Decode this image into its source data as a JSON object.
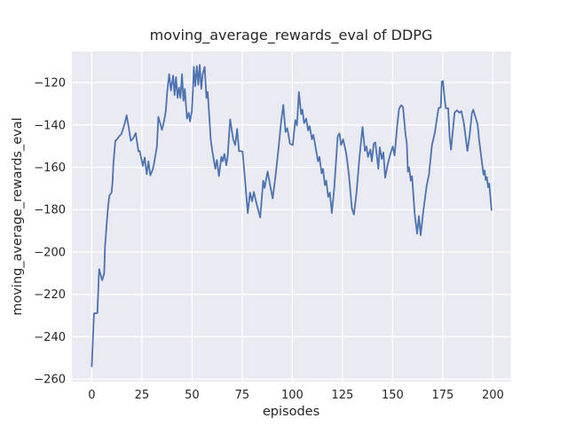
{
  "chart_data": {
    "type": "line",
    "title": "moving_average_rewards_eval of DDPG",
    "xlabel": "episodes",
    "ylabel": "moving_average_rewards_eval",
    "legend": null,
    "grid": true,
    "plot_bg_color": "#EAEAF2",
    "grid_color": "#FFFFFF",
    "line_color": "#4C72B0",
    "text_color": "#262626",
    "xlim": [
      -9.9,
      208.9
    ],
    "ylim": [
      -261.2,
      -105.3
    ],
    "x_ticks": [
      0,
      25,
      50,
      75,
      100,
      125,
      150,
      175,
      200
    ],
    "x_tick_labels": [
      "0",
      "25",
      "50",
      "75",
      "100",
      "125",
      "150",
      "175",
      "200"
    ],
    "y_ticks": [
      -120,
      -140,
      -160,
      -180,
      -200,
      -220,
      -240,
      -260
    ],
    "y_tick_labels": [
      "−120",
      "−140",
      "−160",
      "−180",
      "−200",
      "−220",
      "−240",
      "−260"
    ],
    "series": [
      {
        "name": "moving_average_rewards_eval",
        "points": [
          [
            0,
            -254
          ],
          [
            1.1,
            -229
          ],
          [
            2.8,
            -228.8
          ],
          [
            3.7,
            -208.1
          ],
          [
            5.2,
            -213.4
          ],
          [
            6.2,
            -210.2
          ],
          [
            6.6,
            -197.7
          ],
          [
            7.4,
            -187.2
          ],
          [
            8.1,
            -178.8
          ],
          [
            8.8,
            -173.3
          ],
          [
            9.9,
            -171.9
          ],
          [
            10.3,
            -167.7
          ],
          [
            10.8,
            -158
          ],
          [
            11.8,
            -147.4
          ],
          [
            12.6,
            -146.8
          ],
          [
            13.6,
            -145.5
          ],
          [
            14.8,
            -144.2
          ],
          [
            15.9,
            -141
          ],
          [
            16.5,
            -139
          ],
          [
            17.4,
            -135.5
          ],
          [
            18.4,
            -141
          ],
          [
            19.5,
            -147.5
          ],
          [
            20.7,
            -146.2
          ],
          [
            21.9,
            -143.8
          ],
          [
            23.3,
            -152.5
          ],
          [
            23.9,
            -152.3
          ],
          [
            25.5,
            -159.3
          ],
          [
            26.4,
            -155.4
          ],
          [
            27.4,
            -163.2
          ],
          [
            28.3,
            -157.2
          ],
          [
            29.2,
            -163.8
          ],
          [
            30.3,
            -161.2
          ],
          [
            31,
            -158.6
          ],
          [
            32.5,
            -150.2
          ],
          [
            33.2,
            -136.2
          ],
          [
            34.2,
            -139.5
          ],
          [
            35,
            -142.3
          ],
          [
            36,
            -138.5
          ],
          [
            36.9,
            -133.5
          ],
          [
            37.6,
            -124.4
          ],
          [
            38.6,
            -116
          ],
          [
            39.5,
            -123.8
          ],
          [
            40.6,
            -116.7
          ],
          [
            41.3,
            -125.9
          ],
          [
            42,
            -117.4
          ],
          [
            42.8,
            -127.2
          ],
          [
            43.5,
            -122.3
          ],
          [
            44.2,
            -127.2
          ],
          [
            45,
            -116
          ],
          [
            45.7,
            -128.6
          ],
          [
            46.4,
            -123
          ],
          [
            47.5,
            -137
          ],
          [
            48.4,
            -134.2
          ],
          [
            49,
            -138.4
          ],
          [
            49.9,
            -133.5
          ],
          [
            50.4,
            -124.4
          ],
          [
            50.9,
            -112.6
          ],
          [
            51.6,
            -121.7
          ],
          [
            52.4,
            -112.2
          ],
          [
            53.1,
            -121
          ],
          [
            53.8,
            -111.6
          ],
          [
            54.6,
            -123
          ],
          [
            55.3,
            -116
          ],
          [
            56.3,
            -112.6
          ],
          [
            57.2,
            -127.2
          ],
          [
            57.8,
            -124.4
          ],
          [
            58.7,
            -137
          ],
          [
            59.3,
            -146.8
          ],
          [
            60.1,
            -152.3
          ],
          [
            61.6,
            -160.7
          ],
          [
            62.4,
            -156.5
          ],
          [
            63.4,
            -164.2
          ],
          [
            64.6,
            -155.1
          ],
          [
            65.3,
            -157.2
          ],
          [
            66.1,
            -153.7
          ],
          [
            67.1,
            -159
          ],
          [
            67.8,
            -154.4
          ],
          [
            69,
            -137.3
          ],
          [
            70.5,
            -146.8
          ],
          [
            71.5,
            -149.5
          ],
          [
            72.5,
            -141.9
          ],
          [
            73.4,
            -152.3
          ],
          [
            75.2,
            -152.5
          ],
          [
            76.5,
            -167
          ],
          [
            77.8,
            -181.6
          ],
          [
            78.9,
            -171.9
          ],
          [
            79.9,
            -176.1
          ],
          [
            80.8,
            -171.6
          ],
          [
            82,
            -176.5
          ],
          [
            82.6,
            -178.8
          ],
          [
            84,
            -183.7
          ],
          [
            85.5,
            -166.3
          ],
          [
            86.2,
            -169.8
          ],
          [
            87,
            -165.2
          ],
          [
            87.7,
            -162
          ],
          [
            88.9,
            -168.4
          ],
          [
            90.2,
            -174.7
          ],
          [
            91.5,
            -165
          ],
          [
            93,
            -152
          ],
          [
            94.5,
            -138
          ],
          [
            95.5,
            -130.5
          ],
          [
            96.6,
            -143.3
          ],
          [
            97.5,
            -141.5
          ],
          [
            98.8,
            -148.9
          ],
          [
            100.2,
            -149.5
          ],
          [
            101.5,
            -137.7
          ],
          [
            102.3,
            -140.2
          ],
          [
            103.3,
            -124.4
          ],
          [
            104.4,
            -134.9
          ],
          [
            105,
            -132.8
          ],
          [
            105.9,
            -139.1
          ],
          [
            106.9,
            -137
          ],
          [
            107.9,
            -142.6
          ],
          [
            108.6,
            -140.5
          ],
          [
            109.8,
            -146.8
          ],
          [
            110.5,
            -144.7
          ],
          [
            111.7,
            -151
          ],
          [
            112.8,
            -157.2
          ],
          [
            113.5,
            -155.1
          ],
          [
            114.6,
            -162.8
          ],
          [
            115.3,
            -160.7
          ],
          [
            116.2,
            -168.4
          ],
          [
            116.9,
            -166.3
          ],
          [
            117.9,
            -174
          ],
          [
            118.7,
            -171.9
          ],
          [
            119.7,
            -181.6
          ],
          [
            120.9,
            -169.8
          ],
          [
            122.6,
            -145.4
          ],
          [
            123.5,
            -144
          ],
          [
            124.3,
            -149.5
          ],
          [
            125.3,
            -146.8
          ],
          [
            126.8,
            -153
          ],
          [
            127.5,
            -157.9
          ],
          [
            128.3,
            -164.2
          ],
          [
            129.7,
            -179.5
          ],
          [
            130.7,
            -182.3
          ],
          [
            132,
            -172
          ],
          [
            133.5,
            -155
          ],
          [
            135,
            -141
          ],
          [
            136.2,
            -152.3
          ],
          [
            137,
            -150.2
          ],
          [
            137.7,
            -155.1
          ],
          [
            138.9,
            -151.6
          ],
          [
            139.6,
            -157.2
          ],
          [
            140.6,
            -148.9
          ],
          [
            141.4,
            -148.2
          ],
          [
            142.9,
            -160.7
          ],
          [
            143.6,
            -150.5
          ],
          [
            144.6,
            -156.1
          ],
          [
            145.4,
            -153
          ],
          [
            146.3,
            -164.9
          ],
          [
            147.5,
            -159
          ],
          [
            148.9,
            -153.5
          ],
          [
            150.1,
            -150.2
          ],
          [
            151,
            -154.4
          ],
          [
            152.2,
            -141
          ],
          [
            153.2,
            -132.5
          ],
          [
            154.2,
            -130.7
          ],
          [
            155.2,
            -131.5
          ],
          [
            156.4,
            -144
          ],
          [
            157.1,
            -148.9
          ],
          [
            157.6,
            -162.1
          ],
          [
            158.2,
            -160
          ],
          [
            159.1,
            -166.3
          ],
          [
            159.7,
            -164.2
          ],
          [
            161,
            -181.6
          ],
          [
            162.2,
            -191.4
          ],
          [
            163.1,
            -183
          ],
          [
            164,
            -192.1
          ],
          [
            165.2,
            -181.6
          ],
          [
            166.9,
            -169.1
          ],
          [
            168.1,
            -163.5
          ],
          [
            169.6,
            -149.5
          ],
          [
            171,
            -144
          ],
          [
            172.9,
            -132.1
          ],
          [
            174,
            -131.7
          ],
          [
            174.5,
            -119.6
          ],
          [
            175.1,
            -119.2
          ],
          [
            175.9,
            -127.2
          ],
          [
            176.5,
            -132.1
          ],
          [
            177.7,
            -132.1
          ],
          [
            178.4,
            -145.4
          ],
          [
            179.1,
            -151.6
          ],
          [
            180.9,
            -134.2
          ],
          [
            182.1,
            -133.1
          ],
          [
            183.3,
            -134.2
          ],
          [
            184.3,
            -133.5
          ],
          [
            185.5,
            -139
          ],
          [
            187.3,
            -152.3
          ],
          [
            188.5,
            -144
          ],
          [
            189.5,
            -134.5
          ],
          [
            190.2,
            -132.8
          ],
          [
            192.4,
            -139.8
          ],
          [
            193.1,
            -147
          ],
          [
            195.3,
            -163.5
          ],
          [
            195.9,
            -161.5
          ],
          [
            196.4,
            -166
          ],
          [
            197,
            -164.6
          ],
          [
            197.6,
            -169.4
          ],
          [
            198.2,
            -167.7
          ],
          [
            199.3,
            -180.2
          ]
        ]
      }
    ]
  }
}
